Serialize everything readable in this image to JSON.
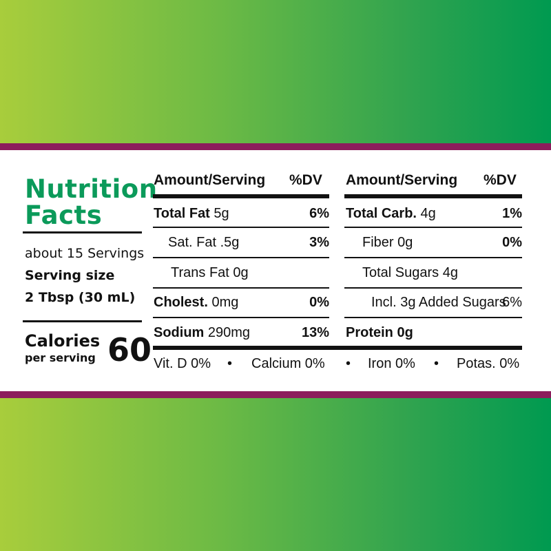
{
  "title_line1": "Nutrition",
  "title_line2": "Facts",
  "servings": "about 15 Servings",
  "serving_size_label": "Serving size",
  "serving_size_value": "2 Tbsp (30 mL)",
  "calories_label": "Calories",
  "calories_sub": "per serving",
  "calories_value": "60",
  "left_col": {
    "header_amount": "Amount/Serving",
    "header_dv": "%DV",
    "rows": [
      {
        "name": "Total Fat",
        "amount": " 5g",
        "dv": "6%"
      },
      {
        "name": "Sat. Fat .5g",
        "dv": "3%"
      },
      {
        "name": "Trans Fat 0g"
      },
      {
        "name": "Cholest.",
        "amount": " 0mg",
        "dv": "0%"
      },
      {
        "name": "Sodium",
        "amount": " 290mg",
        "dv": "13%"
      }
    ]
  },
  "right_col": {
    "header_amount": "Amount/Serving",
    "header_dv": "%DV",
    "rows": [
      {
        "name": "Total Carb.",
        "amount": " 4g",
        "dv": "1%"
      },
      {
        "name": "Fiber 0g",
        "dv": "0%"
      },
      {
        "name": "Total Sugars 4g"
      },
      {
        "name": "Incl. 3g Added Sugars",
        "dv": "6%"
      },
      {
        "name": "Protein 0g"
      }
    ]
  },
  "footer": {
    "vitd": "Vit. D 0%",
    "calcium": "Calcium 0%",
    "iron": "Iron 0%",
    "potas": "Potas. 0%",
    "bullet": "•"
  },
  "colors": {
    "band": "#8c1d5c",
    "title": "#0b9a5a",
    "grad_left": "#a8cd3c",
    "grad_right": "#009a50"
  }
}
